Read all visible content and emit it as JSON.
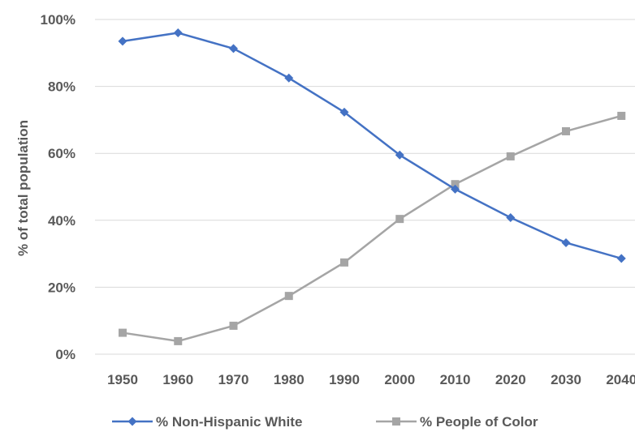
{
  "chart_data": {
    "type": "line",
    "title": "",
    "xlabel": "",
    "ylabel": "% of total population",
    "categories": [
      "1950",
      "1960",
      "1970",
      "1980",
      "1990",
      "2000",
      "2010",
      "2020",
      "2030",
      "2040"
    ],
    "ylim": [
      0,
      100
    ],
    "yticks": [
      0,
      20,
      40,
      60,
      80,
      100
    ],
    "ytick_labels": [
      "0%",
      "20%",
      "40%",
      "60%",
      "80%",
      "100%"
    ],
    "grid": "horizontal",
    "legend_position": "bottom",
    "series": [
      {
        "name": "% Non-Hispanic White",
        "color": "#4472C4",
        "marker": "diamond",
        "values": [
          93.5,
          96.0,
          91.3,
          82.5,
          72.3,
          59.5,
          49.3,
          40.8,
          33.3,
          28.6
        ]
      },
      {
        "name": "% People of Color",
        "color": "#A5A5A5",
        "marker": "square",
        "values": [
          6.4,
          3.9,
          8.5,
          17.4,
          27.4,
          40.4,
          50.8,
          59.1,
          66.6,
          71.2
        ]
      }
    ]
  }
}
